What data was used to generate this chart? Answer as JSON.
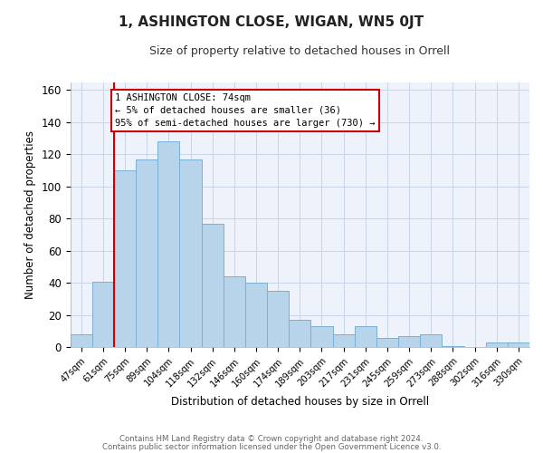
{
  "title": "1, ASHINGTON CLOSE, WIGAN, WN5 0JT",
  "subtitle": "Size of property relative to detached houses in Orrell",
  "xlabel": "Distribution of detached houses by size in Orrell",
  "ylabel": "Number of detached properties",
  "bar_labels": [
    "47sqm",
    "61sqm",
    "75sqm",
    "89sqm",
    "104sqm",
    "118sqm",
    "132sqm",
    "146sqm",
    "160sqm",
    "174sqm",
    "189sqm",
    "203sqm",
    "217sqm",
    "231sqm",
    "245sqm",
    "259sqm",
    "273sqm",
    "288sqm",
    "302sqm",
    "316sqm",
    "330sqm"
  ],
  "bar_values": [
    8,
    41,
    110,
    117,
    128,
    117,
    77,
    44,
    40,
    35,
    17,
    13,
    8,
    13,
    6,
    7,
    8,
    1,
    0,
    3,
    3
  ],
  "bar_color": "#b8d4ea",
  "bar_edge_color": "#7ab0d4",
  "highlight_color": "#cc0000",
  "vline_bar_index": 2,
  "annotation_text": "1 ASHINGTON CLOSE: 74sqm\n← 5% of detached houses are smaller (36)\n95% of semi-detached houses are larger (730) →",
  "annotation_box_color": "white",
  "annotation_box_edge_color": "#cc0000",
  "ylim": [
    0,
    165
  ],
  "yticks": [
    0,
    20,
    40,
    60,
    80,
    100,
    120,
    140,
    160
  ],
  "footer_line1": "Contains HM Land Registry data © Crown copyright and database right 2024.",
  "footer_line2": "Contains public sector information licensed under the Open Government Licence v3.0.",
  "bg_color": "#eef2fb",
  "grid_color": "#c8d4e8"
}
